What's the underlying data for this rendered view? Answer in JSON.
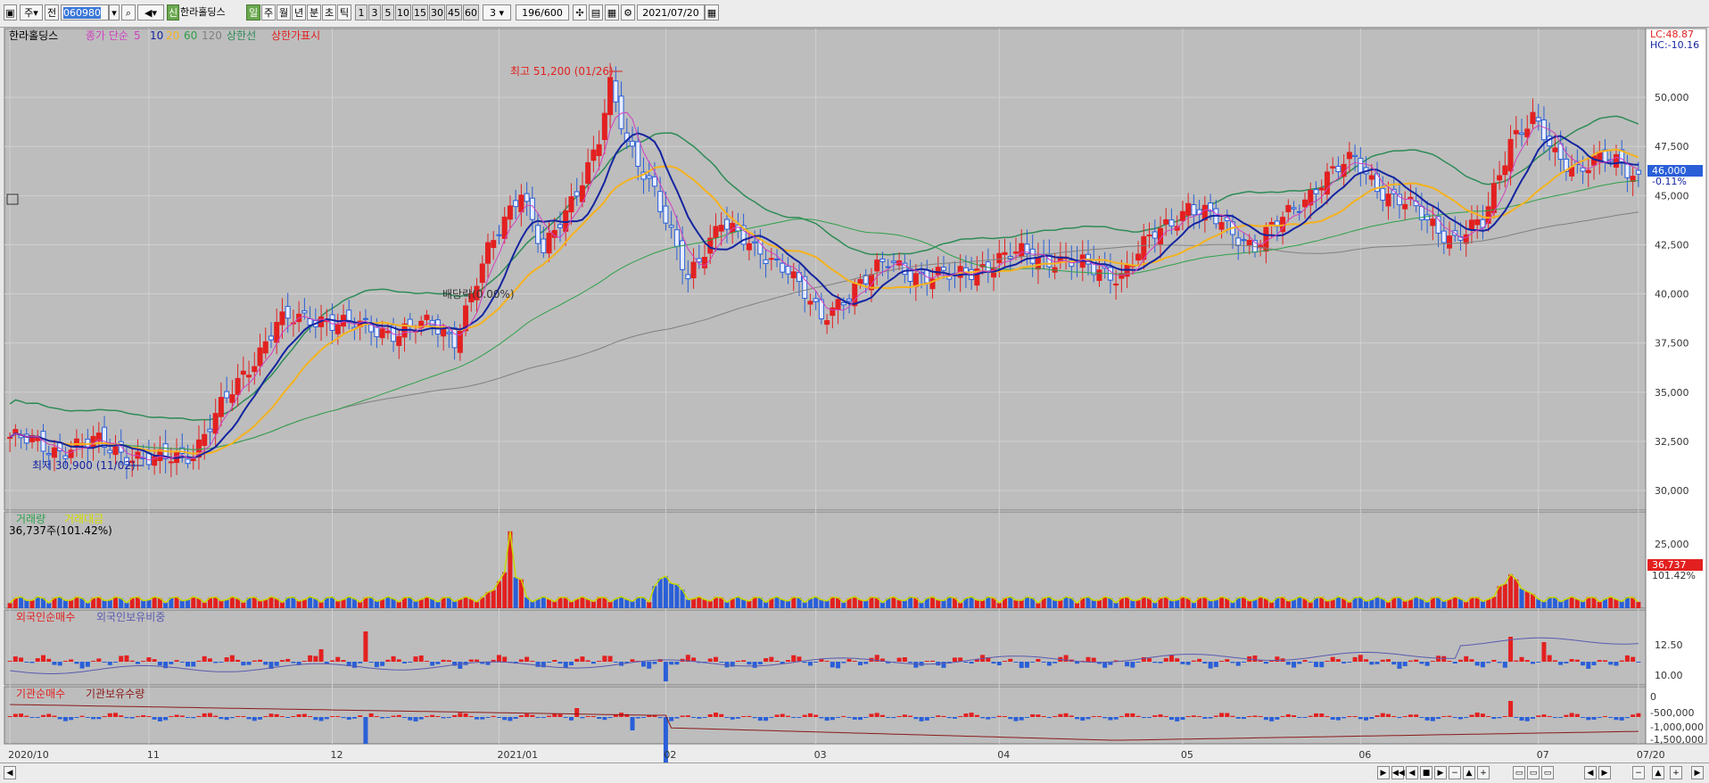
{
  "toolbar": {
    "chart_type_label": "주",
    "market_label": "전",
    "stock_code": "060980",
    "stock_name": "한라홀딩스",
    "new_badge": "신",
    "period_buttons": [
      "일",
      "주",
      "월",
      "년",
      "분",
      "초",
      "틱"
    ],
    "interval_buttons": [
      "1",
      "3",
      "5",
      "10",
      "15",
      "30",
      "45",
      "60"
    ],
    "interval_value": "3",
    "count_value": "196",
    "count_total": "/600",
    "date_value": "2021/07/20"
  },
  "legend": {
    "price_name": "한라홀딩스",
    "ma_label": "종가 단순",
    "ma_periods": [
      "5",
      "10",
      "20",
      "60",
      "120"
    ],
    "upper_band": "상한선",
    "limit_display": "상한가표시",
    "volume_label": "거래량",
    "amount_label": "거래대금",
    "volume_value": "36,737주(101.42%)",
    "foreign_net": "외국인순매수",
    "foreign_ratio": "외국인보유비중",
    "inst_net": "기관순매수",
    "inst_holding": "기관보유수량"
  },
  "annotations": {
    "high": "최고 51,200 (01/26)",
    "low": "최저 30,900 (11/02)",
    "dividend": "배당락(0.00%)",
    "lc": "LC:48.87",
    "hc": "HC:-10.16",
    "last_price": "46,000",
    "change_pct": "-0.11%",
    "last_volume": "36,737",
    "volume_pct": "101.42%"
  },
  "colors": {
    "up": "#e32020",
    "down": "#2a5fd8",
    "ma5": "#d040c0",
    "ma10": "#1424a0",
    "ma20": "#f5b21e",
    "ma60": "#2fa04a",
    "ma120": "#808080",
    "band": "#2e8b57",
    "panel_bg": "#bdbdbd"
  },
  "chart_data": {
    "type": "candlestick",
    "x_labels": [
      "2020/10",
      "11",
      "12",
      "2021/01",
      "02",
      "03",
      "04",
      "05",
      "06",
      "07",
      "07/20"
    ],
    "price": {
      "y_ticks": [
        "30,000",
        "32,500",
        "35,000",
        "37,500",
        "40,000",
        "42,500",
        "45,000",
        "47,500",
        "50,000"
      ],
      "ylim": [
        29000,
        53500
      ],
      "close_key": [
        [
          0,
          32700
        ],
        [
          8,
          32100
        ],
        [
          16,
          32400
        ],
        [
          26,
          31400
        ],
        [
          33,
          32000
        ],
        [
          40,
          35000
        ],
        [
          48,
          38500
        ],
        [
          56,
          38800
        ],
        [
          62,
          38300
        ],
        [
          70,
          38100
        ],
        [
          76,
          38400
        ],
        [
          80,
          37800
        ],
        [
          86,
          42000
        ],
        [
          92,
          45500
        ],
        [
          96,
          42000
        ],
        [
          100,
          44000
        ],
        [
          106,
          48000
        ],
        [
          108,
          50500
        ],
        [
          111,
          47500
        ],
        [
          116,
          45500
        ],
        [
          122,
          40500
        ],
        [
          128,
          44000
        ],
        [
          134,
          42000
        ],
        [
          140,
          41500
        ],
        [
          146,
          38500
        ],
        [
          152,
          40500
        ],
        [
          158,
          41500
        ],
        [
          164,
          41000
        ],
        [
          170,
          40800
        ],
        [
          176,
          41600
        ],
        [
          182,
          42000
        ],
        [
          188,
          41800
        ],
        [
          194,
          41300
        ],
        [
          200,
          41000
        ],
        [
          206,
          43000
        ],
        [
          212,
          44500
        ],
        [
          218,
          43500
        ],
        [
          224,
          42500
        ],
        [
          230,
          44000
        ],
        [
          236,
          45800
        ],
        [
          242,
          46800
        ],
        [
          248,
          45000
        ],
        [
          254,
          44000
        ],
        [
          260,
          42800
        ],
        [
          265,
          43500
        ],
        [
          270,
          48000
        ],
        [
          274,
          48800
        ],
        [
          278,
          47000
        ],
        [
          282,
          46500
        ],
        [
          286,
          46800
        ],
        [
          290,
          46500
        ],
        [
          293,
          46000
        ]
      ],
      "high_point": {
        "value": 51200,
        "date": "01/26"
      },
      "low_point": {
        "value": 30900,
        "date": "11/02"
      }
    },
    "volume": {
      "y_ticks": [
        "25,000"
      ],
      "last": 36737
    },
    "foreign": {
      "y_ticks": [
        "12.50",
        "10.00"
      ]
    },
    "institution": {
      "y_ticks": [
        "0",
        "-500,000",
        "-1,000,000",
        "-1,500,000"
      ]
    }
  }
}
